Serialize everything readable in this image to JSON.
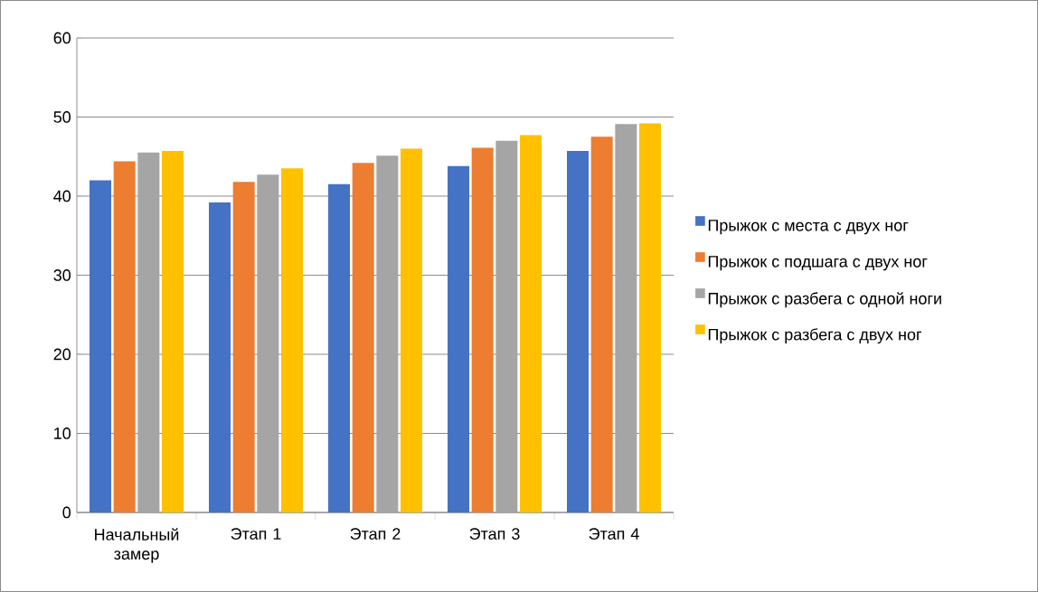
{
  "chart_data": {
    "type": "bar",
    "categories": [
      "Начальный замер",
      "Этап 1",
      "Этап 2",
      "Этап 3",
      "Этап 4"
    ],
    "series": [
      {
        "name": "Прыжок с места с двух ног",
        "color": "#4472c4",
        "values": [
          42.0,
          39.2,
          41.5,
          43.8,
          45.7
        ]
      },
      {
        "name": "Прыжок с подшага с двух ног",
        "color": "#ed7d31",
        "values": [
          44.4,
          41.8,
          44.2,
          46.1,
          47.5
        ]
      },
      {
        "name": "Прыжок с разбега с одной ноги",
        "color": "#a5a5a5",
        "values": [
          45.5,
          42.7,
          45.1,
          47.0,
          49.1
        ]
      },
      {
        "name": "Прыжок с разбега с двух ног",
        "color": "#ffc000",
        "values": [
          45.7,
          43.5,
          46.0,
          47.7,
          49.2
        ]
      }
    ],
    "ylim": [
      0,
      60
    ],
    "yticks": [
      0,
      10,
      20,
      30,
      40,
      50,
      60
    ],
    "grid": "y",
    "legend": "right"
  }
}
